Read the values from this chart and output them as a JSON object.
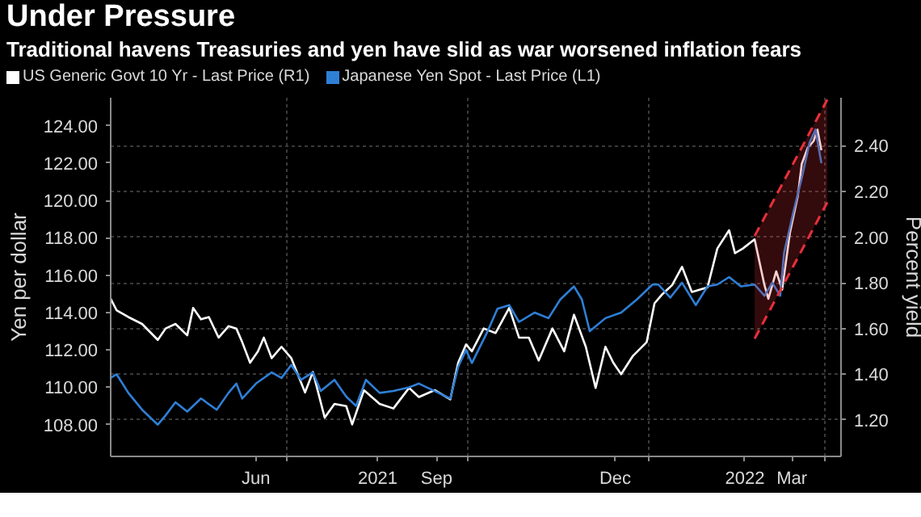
{
  "chart_data": {
    "type": "line",
    "title": "Under Pressure",
    "subtitle": "Traditional havens Treasuries and yen have slid as war worsened inflation fears",
    "ylabel": "Yen per dollar",
    "y2label": "Percent yield",
    "xlim": [
      "2021-04-02",
      "2022-04-09"
    ],
    "xticks": [
      {
        "value": "2021-07-01",
        "label": null
      },
      {
        "value": "2021-10-01",
        "label": null
      },
      {
        "value": "2022-01-01",
        "label": null
      },
      {
        "value": "2022-04-01",
        "label": null
      },
      {
        "value": "2021-06-15",
        "label": "Jun"
      },
      {
        "value": "2021-08-16",
        "label": "2021"
      },
      {
        "value": "2021-09-15",
        "label": "Sep"
      },
      {
        "value": "2021-12-15",
        "label": "Dec"
      },
      {
        "value": "2022-02-19",
        "label": "2022"
      },
      {
        "value": "2022-03-15",
        "label": "Mar"
      }
    ],
    "ylim": [
      106.3,
      125.5
    ],
    "yticks": [
      {
        "value": 108,
        "label": "108.00"
      },
      {
        "value": 110,
        "label": "110.00"
      },
      {
        "value": 112,
        "label": "112.00"
      },
      {
        "value": 114,
        "label": "114.00"
      },
      {
        "value": 116,
        "label": "116.00"
      },
      {
        "value": 118,
        "label": "118.00"
      },
      {
        "value": 120,
        "label": "120.00"
      },
      {
        "value": 122,
        "label": "122.00"
      },
      {
        "value": 124,
        "label": "124.00"
      }
    ],
    "y2lim": [
      1.04,
      2.61
    ],
    "y2ticks": [
      {
        "value": 1.2,
        "label": "1.20"
      },
      {
        "value": 1.4,
        "label": "1.40"
      },
      {
        "value": 1.6,
        "label": "1.60"
      },
      {
        "value": 1.8,
        "label": "1.80"
      },
      {
        "value": 2.0,
        "label": "2.00"
      },
      {
        "value": 2.2,
        "label": "2.20"
      },
      {
        "value": 2.4,
        "label": "2.40"
      }
    ],
    "grid": true,
    "legend": "top left",
    "series": [
      {
        "name": "US Generic Govt 10 Yr - Last Price (R1)",
        "color": "#ffffff",
        "axis": "y2",
        "x": [
          "2021-04-02",
          "2021-04-05",
          "2021-04-11",
          "2021-04-18",
          "2021-04-26",
          "2021-04-30",
          "2021-05-05",
          "2021-05-11",
          "2021-05-14",
          "2021-05-18",
          "2021-05-22",
          "2021-05-27",
          "2021-06-01",
          "2021-06-05",
          "2021-06-08",
          "2021-06-12",
          "2021-06-16",
          "2021-06-19",
          "2021-06-23",
          "2021-06-28",
          "2021-07-03",
          "2021-07-10",
          "2021-07-14",
          "2021-07-20",
          "2021-07-25",
          "2021-07-31",
          "2021-08-03",
          "2021-08-09",
          "2021-08-17",
          "2021-08-24",
          "2021-09-01",
          "2021-09-06",
          "2021-09-14",
          "2021-09-22",
          "2021-09-26",
          "2021-09-30",
          "2021-10-03",
          "2021-10-09",
          "2021-10-15",
          "2021-10-22",
          "2021-10-27",
          "2021-11-01",
          "2021-11-06",
          "2021-11-13",
          "2021-11-19",
          "2021-11-24",
          "2021-11-30",
          "2021-12-05",
          "2021-12-10",
          "2021-12-14",
          "2021-12-18",
          "2021-12-24",
          "2021-12-31",
          "2022-01-04",
          "2022-01-08",
          "2022-01-13",
          "2022-01-18",
          "2022-01-23",
          "2022-01-31",
          "2022-02-05",
          "2022-02-11",
          "2022-02-14",
          "2022-02-18",
          "2022-02-24",
          "2022-03-01",
          "2022-03-03",
          "2022-03-07",
          "2022-03-10",
          "2022-03-14",
          "2022-03-18",
          "2022-03-20",
          "2022-03-23",
          "2022-03-26",
          "2022-03-28",
          "2022-03-30"
        ],
        "values": [
          1.73,
          1.68,
          1.65,
          1.62,
          1.55,
          1.6,
          1.62,
          1.57,
          1.69,
          1.64,
          1.65,
          1.56,
          1.61,
          1.6,
          1.54,
          1.45,
          1.5,
          1.56,
          1.47,
          1.52,
          1.47,
          1.32,
          1.41,
          1.21,
          1.27,
          1.26,
          1.18,
          1.33,
          1.27,
          1.25,
          1.34,
          1.3,
          1.33,
          1.29,
          1.45,
          1.53,
          1.5,
          1.6,
          1.58,
          1.69,
          1.56,
          1.56,
          1.46,
          1.6,
          1.5,
          1.66,
          1.52,
          1.34,
          1.52,
          1.45,
          1.4,
          1.48,
          1.54,
          1.71,
          1.75,
          1.79,
          1.87,
          1.76,
          1.78,
          1.95,
          2.03,
          1.93,
          1.95,
          1.99,
          1.79,
          1.73,
          1.85,
          1.77,
          2.02,
          2.18,
          2.32,
          2.39,
          2.42,
          2.47,
          2.38
        ]
      },
      {
        "name": "Japanese Yen Spot - Last Price (L1)",
        "color": "#2f7fd6",
        "x": [
          "2021-04-02",
          "2021-04-05",
          "2021-04-11",
          "2021-04-18",
          "2021-04-26",
          "2021-04-30",
          "2021-05-05",
          "2021-05-11",
          "2021-05-18",
          "2021-05-26",
          "2021-06-01",
          "2021-06-05",
          "2021-06-08",
          "2021-06-15",
          "2021-06-23",
          "2021-06-28",
          "2021-07-03",
          "2021-07-08",
          "2021-07-14",
          "2021-07-18",
          "2021-07-25",
          "2021-07-31",
          "2021-08-05",
          "2021-08-10",
          "2021-08-17",
          "2021-08-24",
          "2021-09-01",
          "2021-09-06",
          "2021-09-14",
          "2021-09-22",
          "2021-09-26",
          "2021-09-30",
          "2021-10-03",
          "2021-10-11",
          "2021-10-16",
          "2021-10-22",
          "2021-10-27",
          "2021-11-04",
          "2021-11-11",
          "2021-11-17",
          "2021-11-24",
          "2021-11-28",
          "2021-12-02",
          "2021-12-10",
          "2021-12-18",
          "2021-12-26",
          "2022-01-03",
          "2022-01-06",
          "2022-01-12",
          "2022-01-18",
          "2022-01-25",
          "2022-01-31",
          "2022-02-05",
          "2022-02-11",
          "2022-02-17",
          "2022-02-24",
          "2022-03-01",
          "2022-03-05",
          "2022-03-09",
          "2022-03-11",
          "2022-03-16",
          "2022-03-20",
          "2022-03-24",
          "2022-03-27",
          "2022-03-30"
        ],
        "values": [
          110.5,
          110.7,
          109.7,
          108.8,
          108.0,
          108.5,
          109.2,
          108.7,
          109.4,
          108.8,
          109.7,
          110.2,
          109.4,
          110.2,
          110.8,
          110.5,
          111.2,
          110.4,
          110.8,
          109.8,
          110.4,
          109.5,
          109.0,
          110.4,
          109.7,
          109.8,
          110.0,
          110.2,
          109.8,
          109.4,
          111.1,
          112.0,
          111.3,
          113.0,
          114.2,
          114.4,
          113.5,
          114.0,
          113.7,
          114.7,
          115.4,
          114.7,
          113.0,
          113.7,
          114.0,
          114.7,
          115.5,
          115.5,
          114.8,
          115.6,
          114.4,
          115.4,
          115.5,
          115.9,
          115.4,
          115.5,
          114.9,
          115.6,
          114.9,
          117.2,
          119.5,
          121.2,
          123.1,
          123.8,
          122.0
        ]
      },
      {
        "type": "line",
        "color": "#e8303a",
        "line_style": "dashed",
        "x": [
          "2022-02-24",
          "2022-04-02"
        ],
        "values": [
          112.6,
          119.9
        ]
      },
      {
        "type": "line",
        "color": "#e8303a",
        "line_style": "dashed",
        "x": [
          "2022-02-24",
          "2022-04-02"
        ],
        "values": [
          118.1,
          125.4
        ],
        "lower": [
          112.6,
          119.9
        ],
        "upper": [
          118.1,
          125.4
        ]
      }
    ]
  }
}
